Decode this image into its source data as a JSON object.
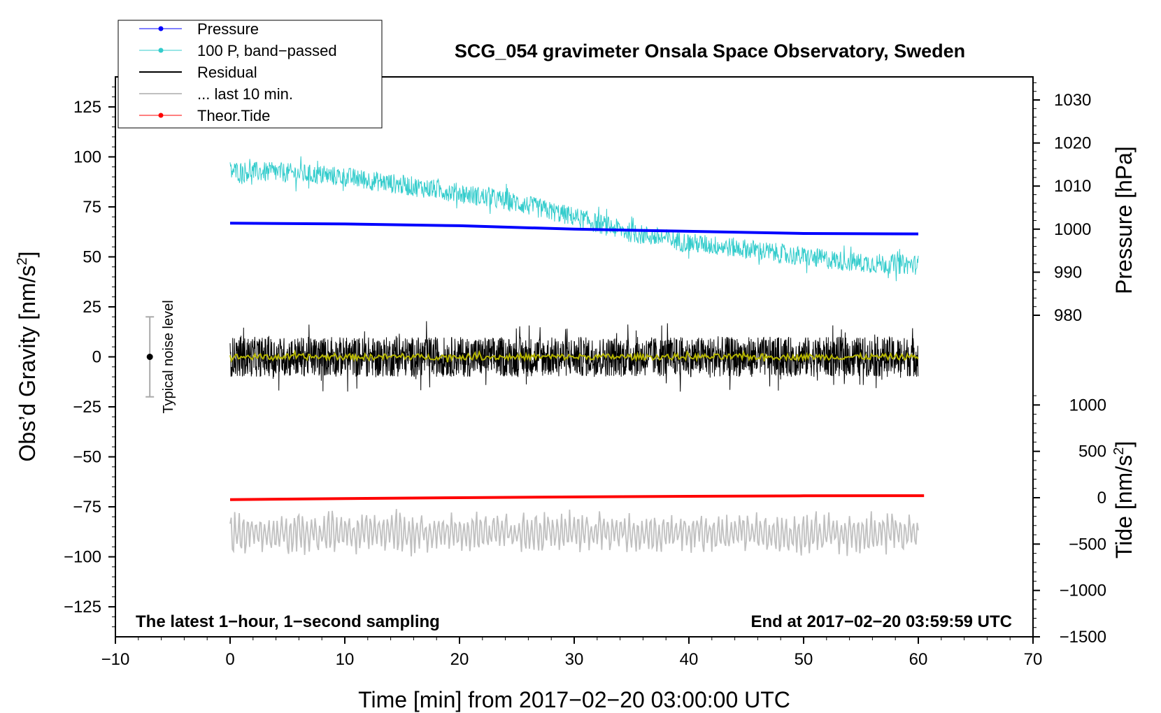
{
  "chart_data": {
    "type": "line",
    "title": "SCG_054 gravimeter Onsala Space Observatory, Sweden",
    "xlabel": "Time [min] from 2017−02−20 03:00:00 UTC",
    "ylabel_left_main": "Obs’d Gravity [nm/s",
    "ylabel_left_sup": "2",
    "ylabel_left_end": "]",
    "ylabel_right_pressure": "Pressure [hPa]",
    "ylabel_right_tide_main": "Tide [nm/s",
    "ylabel_right_tide_sup": "2",
    "ylabel_right_tide_end": "]",
    "xlim": [
      -10,
      70
    ],
    "ylim_left": [
      -140,
      140
    ],
    "ylim_pressure": [
      975,
      1034
    ],
    "ylim_tide": [
      -1500,
      1200
    ],
    "x_ticks": [
      "−10",
      "0",
      "10",
      "20",
      "30",
      "40",
      "50",
      "60",
      "70"
    ],
    "x_tick_values": [
      -10,
      0,
      10,
      20,
      30,
      40,
      50,
      60,
      70
    ],
    "y_left_ticks": [
      "125",
      "100",
      "75",
      "50",
      "25",
      "0",
      "−25",
      "−50",
      "−75",
      "−100",
      "−125"
    ],
    "y_left_tick_values": [
      125,
      100,
      75,
      50,
      25,
      0,
      -25,
      -50,
      -75,
      -100,
      -125
    ],
    "y_pressure_ticks": [
      "1030",
      "1020",
      "1010",
      "1000",
      "990",
      "980"
    ],
    "y_pressure_tick_values": [
      1030,
      1020,
      1010,
      1000,
      990,
      980
    ],
    "y_tide_ticks": [
      "1000",
      "500",
      "0",
      "−500",
      "−1000",
      "−1500"
    ],
    "y_tide_tick_values": [
      1000,
      500,
      0,
      -500,
      -1000,
      -1500
    ],
    "legend": [
      {
        "label": "Pressure",
        "color": "#0000ff",
        "marker": true
      },
      {
        "label": "100 P, band−passed",
        "color": "#33cccc",
        "marker": true
      },
      {
        "label": "Residual",
        "color": "#000000",
        "marker": false
      },
      {
        "label": "... last 10 min.",
        "color": "#c0c0c0",
        "marker": false
      },
      {
        "label": "Theor.Tide",
        "color": "#ff0000",
        "marker": true
      }
    ],
    "legend_position": "top-left",
    "series": [
      {
        "name": "Pressure",
        "axis": "pressure",
        "color": "#0000ff",
        "x": [
          0,
          10,
          20,
          30,
          40,
          50,
          60
        ],
        "y": [
          1001.4,
          1001.2,
          1000.8,
          1000.0,
          999.5,
          999.0,
          998.9
        ]
      },
      {
        "name": "100 P, band-passed",
        "axis": "left",
        "color": "#33cccc",
        "x": [
          0,
          5,
          10,
          15,
          20,
          25,
          30,
          35,
          40,
          45,
          50,
          55,
          60
        ],
        "y": [
          93,
          92,
          90,
          86,
          82,
          77,
          70,
          62,
          57,
          54,
          50,
          47,
          46
        ],
        "noise_amplitude": 5
      },
      {
        "name": "Residual",
        "axis": "left",
        "color": "#000000",
        "x": [
          0,
          60
        ],
        "y": [
          0,
          0
        ],
        "noise_amplitude": 10
      },
      {
        "name": "Residual smoothed",
        "axis": "left",
        "color": "#b5b500",
        "x": [
          0,
          60
        ],
        "y": [
          0,
          0
        ],
        "noise_amplitude": 1.5
      },
      {
        "name": "... last 10 min.",
        "axis": "left",
        "color": "#c0c0c0",
        "x": [
          0,
          60
        ],
        "y": [
          -88,
          -88
        ],
        "noise_amplitude": 10
      },
      {
        "name": "Theor.Tide",
        "axis": "tide",
        "color": "#ff0000",
        "x": [
          0,
          10,
          20,
          30,
          40,
          50,
          60.5
        ],
        "y": [
          -20,
          -10,
          0,
          8,
          15,
          20,
          22
        ]
      }
    ],
    "noise_bar": {
      "x": -7,
      "y_low": -20,
      "y_high": 20,
      "label": "Typical noise level"
    },
    "annotation_left": "The latest 1−hour, 1−second sampling",
    "annotation_right": "End at 2017−02−20 03:59:59 UTC"
  }
}
